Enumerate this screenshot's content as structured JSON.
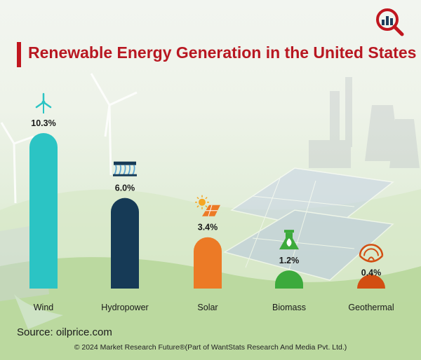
{
  "header": {
    "title": "Renewable Energy Generation in the United States"
  },
  "chart_data": {
    "type": "bar",
    "title": "Renewable Energy Generation in the United States",
    "xlabel": "",
    "ylabel": "",
    "ylim": [
      0,
      10.3
    ],
    "grid": false,
    "categories": [
      "Wind",
      "Hydropower",
      "Solar",
      "Biomass",
      "Geothermal"
    ],
    "values": [
      10.3,
      6.0,
      3.4,
      1.2,
      0.4
    ],
    "value_labels": [
      "10.3%",
      "6.0%",
      "3.4%",
      "1.2%",
      "0.4%"
    ],
    "icons": [
      "wind-turbine-icon",
      "hydropower-dam-icon",
      "solar-panel-icon",
      "biomass-flask-icon",
      "geothermal-icon"
    ],
    "colors": [
      "#2bc4c4",
      "#163a56",
      "#ec7a26",
      "#3caa3c",
      "#d24e12"
    ]
  },
  "footer": {
    "source": "Source: oilprice.com",
    "copyright": "© 2024 Market Research Future®(Part of WantStats Research And Media Pvt. Ltd.)"
  }
}
